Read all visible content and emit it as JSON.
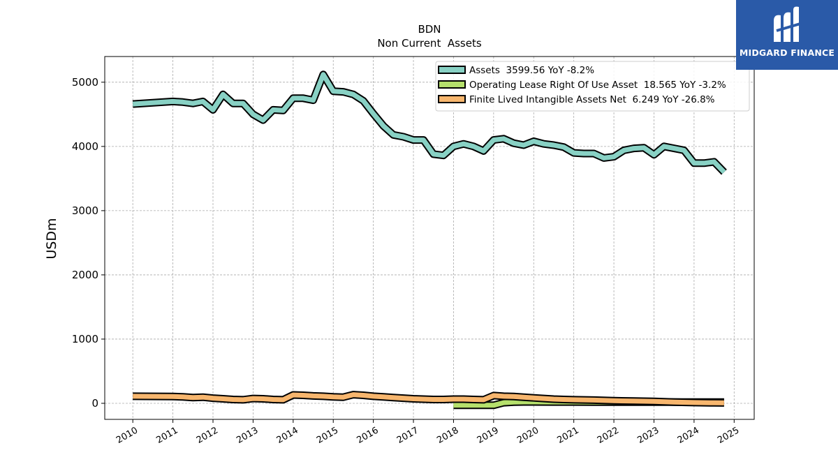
{
  "brand": {
    "name": "MIDGARD FINANCE",
    "logo_icon": "midgard-logo-icon",
    "color": "#2a5aa8"
  },
  "chart_data": {
    "type": "line",
    "title": "BDN",
    "subtitle": "Non Current  Assets",
    "ylabel": "USDm",
    "xlabel": "",
    "ylim": [
      -250,
      5400
    ],
    "xlim": [
      2009.3,
      2025.5
    ],
    "yticks": [
      0,
      1000,
      2000,
      3000,
      4000,
      5000
    ],
    "xticks": [
      "2010",
      "2011",
      "2012",
      "2013",
      "2014",
      "2015",
      "2016",
      "2017",
      "2018",
      "2019",
      "2020",
      "2021",
      "2022",
      "2023",
      "2024",
      "2025"
    ],
    "grid": true,
    "legend_position": "top-right",
    "series": [
      {
        "name": "Assets  3599.56 YoY -8.2%",
        "color": "#88d1c4",
        "x": [
          2010.0,
          2011.0,
          2011.25,
          2011.5,
          2011.75,
          2012.0,
          2012.25,
          2012.5,
          2012.75,
          2013.0,
          2013.25,
          2013.5,
          2013.75,
          2014.0,
          2014.25,
          2014.5,
          2014.75,
          2015.0,
          2015.25,
          2015.5,
          2015.75,
          2016.0,
          2016.25,
          2016.5,
          2016.75,
          2017.0,
          2017.25,
          2017.5,
          2017.75,
          2018.0,
          2018.25,
          2018.5,
          2018.75,
          2019.0,
          2019.25,
          2019.5,
          2019.75,
          2020.0,
          2020.25,
          2020.5,
          2020.75,
          2021.0,
          2021.25,
          2021.5,
          2021.75,
          2022.0,
          2022.25,
          2022.5,
          2022.75,
          2023.0,
          2023.25,
          2023.5,
          2023.75,
          2024.0,
          2024.25,
          2024.5,
          2024.75
        ],
        "values": [
          4660,
          4700,
          4690,
          4670,
          4700,
          4570,
          4810,
          4670,
          4670,
          4500,
          4410,
          4570,
          4560,
          4750,
          4750,
          4720,
          5120,
          4860,
          4850,
          4810,
          4710,
          4510,
          4320,
          4180,
          4150,
          4100,
          4100,
          3880,
          3860,
          4000,
          4040,
          4000,
          3930,
          4100,
          4120,
          4050,
          4020,
          4080,
          4040,
          4020,
          3990,
          3900,
          3890,
          3890,
          3820,
          3840,
          3940,
          3970,
          3980,
          3870,
          4000,
          3970,
          3940,
          3740,
          3740,
          3760,
          3600
        ]
      },
      {
        "name": "Operating Lease Right Of Use Asset  18.565 YoY -3.2%",
        "color": "#b5e06c",
        "x": [
          2018.0,
          2018.75,
          2019.0,
          2019.25,
          2019.5,
          2019.75,
          2020.0,
          2020.5,
          2021.0,
          2021.5,
          2022.0,
          2022.5,
          2023.0,
          2023.5,
          2024.0,
          2024.5,
          2024.75
        ],
        "values": [
          -30,
          -30,
          -30,
          10,
          20,
          22,
          22,
          21,
          21,
          20,
          20,
          20,
          20,
          19,
          19,
          19,
          18.565
        ]
      },
      {
        "name": "Finite Lived Intangible Assets Net  6.249 YoY -26.8%",
        "color": "#f7b66e",
        "x": [
          2010.0,
          2011.0,
          2011.25,
          2011.5,
          2011.75,
          2012.0,
          2012.25,
          2012.5,
          2012.75,
          2013.0,
          2013.25,
          2013.5,
          2013.75,
          2014.0,
          2014.25,
          2014.5,
          2014.75,
          2015.0,
          2015.25,
          2015.5,
          2015.75,
          2016.0,
          2016.25,
          2016.5,
          2016.75,
          2017.0,
          2017.25,
          2017.5,
          2017.75,
          2018.0,
          2018.25,
          2018.5,
          2018.75,
          2019.0,
          2019.25,
          2019.5,
          2019.75,
          2020.0,
          2020.25,
          2020.5,
          2020.75,
          2021.0,
          2021.5,
          2022.0,
          2022.5,
          2023.0,
          2023.5,
          2024.0,
          2024.5,
          2024.75
        ],
        "values": [
          110,
          105,
          100,
          90,
          95,
          80,
          70,
          60,
          55,
          75,
          70,
          60,
          55,
          130,
          125,
          115,
          110,
          100,
          95,
          135,
          125,
          110,
          100,
          90,
          80,
          70,
          65,
          60,
          60,
          65,
          65,
          60,
          55,
          120,
          110,
          105,
          95,
          85,
          75,
          65,
          60,
          55,
          50,
          40,
          35,
          30,
          20,
          12,
          8,
          6.249
        ]
      }
    ]
  }
}
